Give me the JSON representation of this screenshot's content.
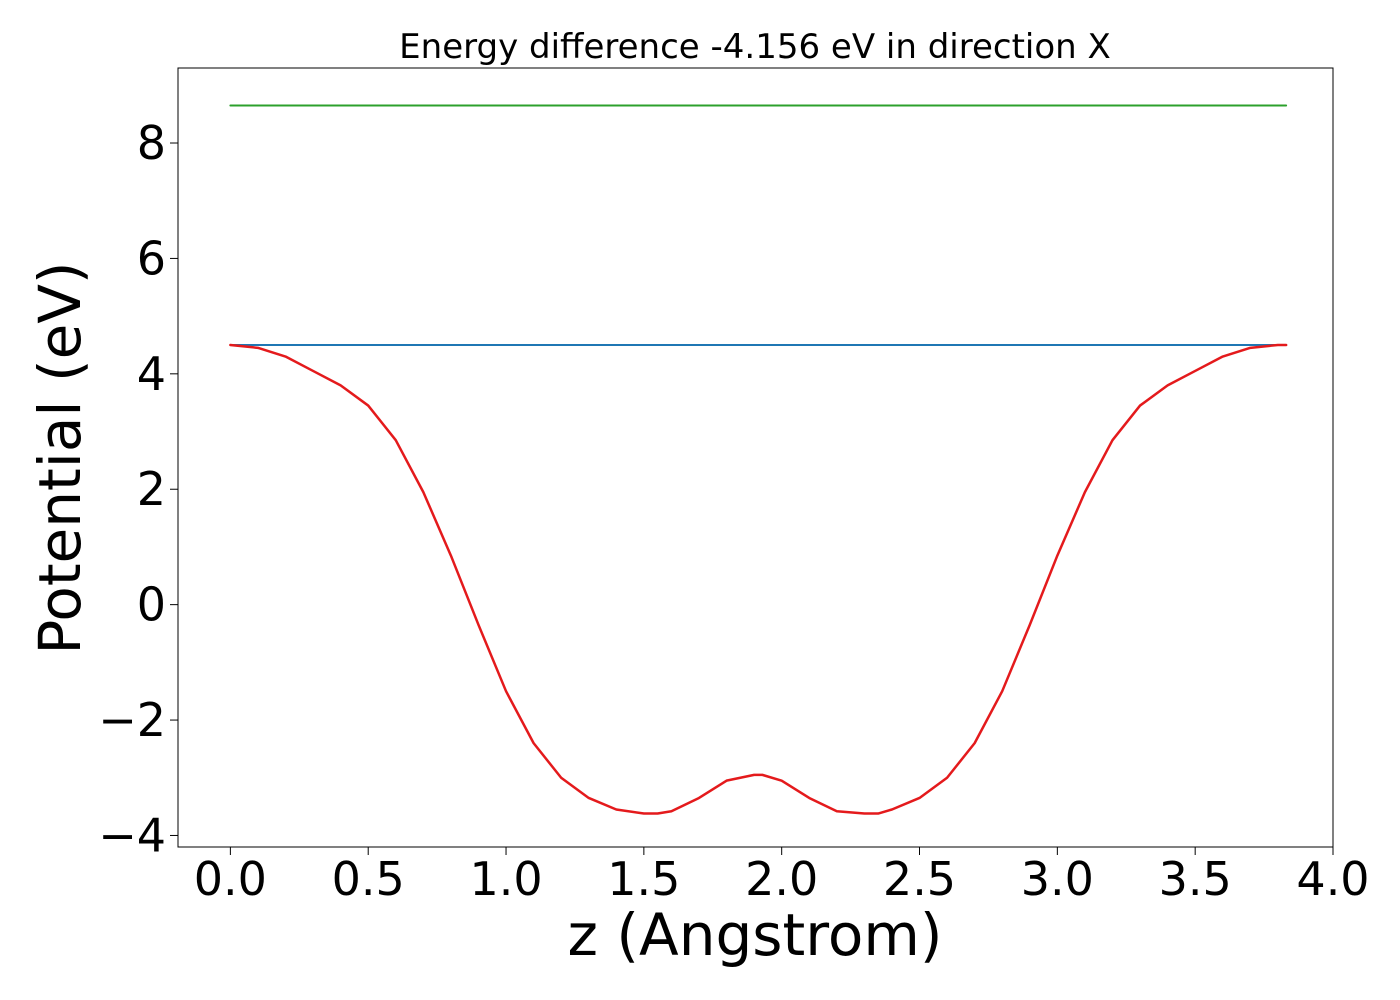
{
  "chart_data": {
    "type": "line",
    "title": "Energy difference -4.156 eV in direction X",
    "xlabel": "z (Angstrom)",
    "ylabel": "Potential (eV)",
    "xlim": [
      -0.19,
      4.0
    ],
    "ylim": [
      -4.2,
      9.3
    ],
    "x_ticks": [
      0.0,
      0.5,
      1.0,
      1.5,
      2.0,
      2.5,
      3.0,
      3.5,
      4.0
    ],
    "x_tick_labels": [
      "0.0",
      "0.5",
      "1.0",
      "1.5",
      "2.0",
      "2.5",
      "3.0",
      "3.5",
      "4.0"
    ],
    "y_ticks": [
      -4,
      -2,
      0,
      2,
      4,
      6,
      8
    ],
    "y_tick_labels": [
      "−4",
      "−2",
      "0",
      "2",
      "4",
      "6",
      "8"
    ],
    "grid": false,
    "legend": "none",
    "series": [
      {
        "color": "#2ca02c",
        "x": [
          0.0,
          3.83
        ],
        "y": [
          8.65,
          8.65
        ]
      },
      {
        "color": "#1f77b4",
        "x": [
          0.0,
          3.83
        ],
        "y": [
          4.5,
          4.5
        ]
      },
      {
        "color": "#e41a1c",
        "x": [
          0.0,
          0.1,
          0.2,
          0.3,
          0.4,
          0.5,
          0.6,
          0.7,
          0.8,
          0.9,
          1.0,
          1.1,
          1.2,
          1.3,
          1.4,
          1.5,
          1.55,
          1.6,
          1.7,
          1.8,
          1.9,
          1.93,
          2.0,
          2.1,
          2.2,
          2.3,
          2.35,
          2.4,
          2.5,
          2.6,
          2.7,
          2.8,
          2.9,
          3.0,
          3.1,
          3.2,
          3.3,
          3.4,
          3.5,
          3.6,
          3.7,
          3.8,
          3.83
        ],
        "y": [
          4.5,
          4.45,
          4.3,
          4.05,
          3.8,
          3.45,
          2.85,
          1.95,
          0.85,
          -0.35,
          -1.5,
          -2.4,
          -3.0,
          -3.35,
          -3.55,
          -3.62,
          -3.62,
          -3.58,
          -3.35,
          -3.05,
          -2.95,
          -2.95,
          -3.05,
          -3.35,
          -3.58,
          -3.62,
          -3.62,
          -3.55,
          -3.35,
          -3.0,
          -2.4,
          -1.5,
          -0.35,
          0.85,
          1.95,
          2.85,
          3.45,
          3.8,
          4.05,
          4.3,
          4.45,
          4.5,
          4.5
        ]
      }
    ]
  }
}
